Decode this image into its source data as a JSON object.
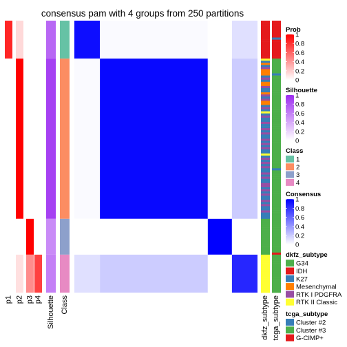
{
  "chart_data": {
    "type": "heatmap",
    "title": "consensus pam with 4 groups from 250 partitions",
    "column_labels": [
      "p1",
      "p2",
      "p3",
      "p4",
      "Silhouette",
      "Class"
    ],
    "row_annotation_labels": [
      "dkfz_subtype",
      "tcga_subtype"
    ],
    "groups": [
      {
        "class": 1,
        "n": 18,
        "p": [
          0.85,
          0.15,
          0,
          0
        ],
        "silhouette": 0.72
      },
      {
        "class": 2,
        "n": 76,
        "p": [
          0,
          1,
          0,
          0
        ],
        "silhouette": 0.9
      },
      {
        "class": 3,
        "n": 17,
        "p": [
          0,
          0,
          1,
          0
        ],
        "silhouette": 0.55
      },
      {
        "class": 4,
        "n": 18,
        "p": [
          0,
          0.12,
          0.45,
          0.75
        ],
        "silhouette": 0.6
      }
    ],
    "block_consensus": [
      [
        0.95,
        0.02,
        0.0,
        0.12
      ],
      [
        0.02,
        0.97,
        0.0,
        0.2
      ],
      [
        0.0,
        0.0,
        1.0,
        0.0
      ],
      [
        0.12,
        0.2,
        0.0,
        0.85
      ]
    ],
    "legends": [
      {
        "title": "Prob",
        "ticks": [
          "1",
          "0.8",
          "0.6",
          "0.4",
          "0.2",
          "0"
        ],
        "low": "#ffffff",
        "high": "#ff0000"
      },
      {
        "title": "Silhouette",
        "ticks": [
          "1",
          "0.8",
          "0.6",
          "0.4",
          "0.2",
          "0"
        ],
        "low": "#ffffff",
        "high": "#9c2cf0"
      },
      {
        "title": "Class",
        "items": [
          {
            "label": "1",
            "color": "#66c2a5"
          },
          {
            "label": "2",
            "color": "#fc8d62"
          },
          {
            "label": "3",
            "color": "#8da0cb"
          },
          {
            "label": "4",
            "color": "#e78ac3"
          }
        ]
      },
      {
        "title": "Consensus",
        "ticks": [
          "1",
          "0.8",
          "0.6",
          "0.4",
          "0.2",
          "0"
        ],
        "low": "#ffffff",
        "high": "#0000ff"
      },
      {
        "title": "dkfz_subtype",
        "items": [
          {
            "label": "G34",
            "color": "#4daf4a"
          },
          {
            "label": "IDH",
            "color": "#e41a1c"
          },
          {
            "label": "K27",
            "color": "#377eb8"
          },
          {
            "label": "Mesenchymal",
            "color": "#ff7f00"
          },
          {
            "label": "RTK I PDGFRA",
            "color": "#984ea3"
          },
          {
            "label": "RTK II Classic",
            "color": "#ffff33"
          }
        ]
      },
      {
        "title": "tcga_subtype",
        "items": [
          {
            "label": "Cluster #2",
            "color": "#377eb8"
          },
          {
            "label": "Cluster #3",
            "color": "#4daf4a"
          },
          {
            "label": "G-CIMP+",
            "color": "#e41a1c"
          }
        ]
      }
    ]
  }
}
